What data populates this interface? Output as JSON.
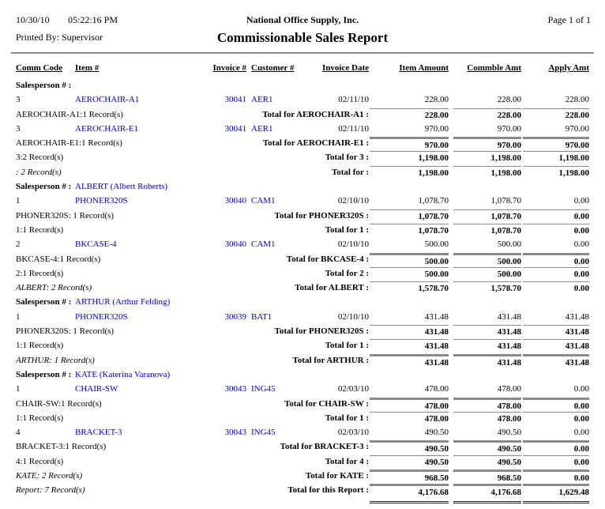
{
  "report": {
    "date": "10/30/10",
    "time": "05:22:16 PM",
    "printed_by": "Printed By: Supervisor",
    "company": "National Office Supply, Inc.",
    "title": "Commissionable Sales Report",
    "page": "Page 1 of 1"
  },
  "colors": {
    "link_blue": "#0000CC",
    "rule_gray": "#8a8a8a"
  },
  "table": {
    "columns": [
      "Comm Code",
      "Item #",
      "Invoice #",
      "Customer #",
      "Invoice Date",
      "Item Amount",
      "Commble Amt",
      "Apply Amt"
    ],
    "group_label": "Salesperson # :",
    "rows": [
      {
        "type": "group",
        "name": ""
      },
      {
        "type": "detail",
        "comm": "3",
        "item": "AEROCHAIR-A1",
        "invoice": "30041",
        "customer": "AER1",
        "date": "02/11/10",
        "item_amt": "228.00",
        "commble_amt": "228.00",
        "apply_amt": "228.00"
      },
      {
        "type": "total",
        "left": "AEROCHAIR-A1:1 Record(s)",
        "left_italic": false,
        "label": "Total for AEROCHAIR-A1 :",
        "item_amt": "228.00",
        "commble_amt": "228.00",
        "apply_amt": "228.00",
        "line": "thin"
      },
      {
        "type": "detail",
        "comm": "3",
        "item": "AEROCHAIR-E1",
        "invoice": "30041",
        "customer": "AER1",
        "date": "02/11/10",
        "item_amt": "970.00",
        "commble_amt": "970.00",
        "apply_amt": "970.00"
      },
      {
        "type": "total",
        "left": "AEROCHAIR-E1:1 Record(s)",
        "left_italic": false,
        "label": "Total for AEROCHAIR-E1 :",
        "item_amt": "970.00",
        "commble_amt": "970.00",
        "apply_amt": "970.00",
        "line": "thick"
      },
      {
        "type": "total",
        "left": "3:2 Record(s)",
        "left_italic": false,
        "label": "Total for 3 :",
        "item_amt": "1,198.00",
        "commble_amt": "1,198.00",
        "apply_amt": "1,198.00",
        "line": "thin"
      },
      {
        "type": "total",
        "left": ": 2 Record(s)",
        "left_italic": true,
        "label": "Total for :",
        "item_amt": "1,198.00",
        "commble_amt": "1,198.00",
        "apply_amt": "1,198.00",
        "line": "thin"
      },
      {
        "type": "group",
        "name": "ALBERT (Albert Roberts)"
      },
      {
        "type": "detail",
        "comm": "1",
        "item": "PHONER320S",
        "invoice": "30040",
        "customer": "CAM1",
        "date": "02/10/10",
        "item_amt": "1,078.70",
        "commble_amt": "1,078.70",
        "apply_amt": "0.00"
      },
      {
        "type": "total",
        "left": "PHONER320S: 1 Record(s)",
        "left_italic": false,
        "label": "Total for PHONER320S :",
        "item_amt": "1,078.70",
        "commble_amt": "1,078.70",
        "apply_amt": "0.00",
        "line": "thin"
      },
      {
        "type": "total",
        "left": "1:1 Record(s)",
        "left_italic": false,
        "label": "Total for 1 :",
        "item_amt": "1,078.70",
        "commble_amt": "1,078.70",
        "apply_amt": "0.00",
        "line": "thin"
      },
      {
        "type": "detail",
        "comm": "2",
        "item": "BKCASE-4",
        "invoice": "30040",
        "customer": "CAM1",
        "date": "02/10/10",
        "item_amt": "500.00",
        "commble_amt": "500.00",
        "apply_amt": "0.00"
      },
      {
        "type": "total",
        "left": "BKCASE-4:1 Record(s)",
        "left_italic": false,
        "label": "Total for BKCASE-4 :",
        "item_amt": "500.00",
        "commble_amt": "500.00",
        "apply_amt": "0.00",
        "line": "thick"
      },
      {
        "type": "total",
        "left": "2:1 Record(s)",
        "left_italic": false,
        "label": "Total for 2 :",
        "item_amt": "500.00",
        "commble_amt": "500.00",
        "apply_amt": "0.00",
        "line": "thin"
      },
      {
        "type": "total",
        "left": "ALBERT: 2 Record(s)",
        "left_italic": true,
        "label": "Total for ALBERT :",
        "item_amt": "1,578.70",
        "commble_amt": "1,578.70",
        "apply_amt": "0.00",
        "line": "thin"
      },
      {
        "type": "group",
        "name": "ARTHUR (Arthur Felding)"
      },
      {
        "type": "detail",
        "comm": "1",
        "item": "PHONER320S",
        "invoice": "30039",
        "customer": "BAT1",
        "date": "02/10/10",
        "item_amt": "431.48",
        "commble_amt": "431.48",
        "apply_amt": "431.48"
      },
      {
        "type": "total",
        "left": "PHONER320S: 1 Record(s)",
        "left_italic": false,
        "label": "Total for PHONER320S :",
        "item_amt": "431.48",
        "commble_amt": "431.48",
        "apply_amt": "431.48",
        "line": "thin"
      },
      {
        "type": "total",
        "left": "1:1 Record(s)",
        "left_italic": false,
        "label": "Total for 1 :",
        "item_amt": "431.48",
        "commble_amt": "431.48",
        "apply_amt": "431.48",
        "line": "thin"
      },
      {
        "type": "total",
        "left": "ARTHUR: 1 Record(s)",
        "left_italic": true,
        "label": "Total for ARTHUR :",
        "item_amt": "431.48",
        "commble_amt": "431.48",
        "apply_amt": "431.48",
        "line": "thick"
      },
      {
        "type": "group",
        "name": "KATE (Katerina Varanova)"
      },
      {
        "type": "detail",
        "comm": "1",
        "item": "CHAIR-SW",
        "invoice": "30043",
        "customer": "ING45",
        "date": "02/03/10",
        "item_amt": "478.00",
        "commble_amt": "478.00",
        "apply_amt": "0.00"
      },
      {
        "type": "total",
        "left": "CHAIR-SW:1 Record(s)",
        "left_italic": false,
        "label": "Total for CHAIR-SW :",
        "item_amt": "478.00",
        "commble_amt": "478.00",
        "apply_amt": "0.00",
        "line": "thick"
      },
      {
        "type": "total",
        "left": "1:1 Record(s)",
        "left_italic": false,
        "label": "Total for 1 :",
        "item_amt": "478.00",
        "commble_amt": "478.00",
        "apply_amt": "0.00",
        "line": "thin"
      },
      {
        "type": "detail",
        "comm": "4",
        "item": "BRACKET-3",
        "invoice": "30043",
        "customer": "ING45",
        "date": "02/03/10",
        "item_amt": "490.50",
        "commble_amt": "490.50",
        "apply_amt": "0.00"
      },
      {
        "type": "total",
        "left": "BRACKET-3:1 Record(s)",
        "left_italic": false,
        "label": "Total for BRACKET-3 :",
        "item_amt": "490.50",
        "commble_amt": "490.50",
        "apply_amt": "0.00",
        "line": "thick"
      },
      {
        "type": "total",
        "left": "4:1 Record(s)",
        "left_italic": false,
        "label": "Total for 4 :",
        "item_amt": "490.50",
        "commble_amt": "490.50",
        "apply_amt": "0.00",
        "line": "thin"
      },
      {
        "type": "total",
        "left": "KATE: 2 Record(s)",
        "left_italic": true,
        "label": "Total for KATE :",
        "item_amt": "968.50",
        "commble_amt": "968.50",
        "apply_amt": "0.00",
        "line": "thick"
      },
      {
        "type": "total",
        "left": "Report: 7 Record(s)",
        "left_italic": true,
        "label": "Total for this Report :",
        "item_amt": "4,176.68",
        "commble_amt": "4,176.68",
        "apply_amt": "1,629.48",
        "line": "thick",
        "double_bottom": true
      }
    ]
  }
}
